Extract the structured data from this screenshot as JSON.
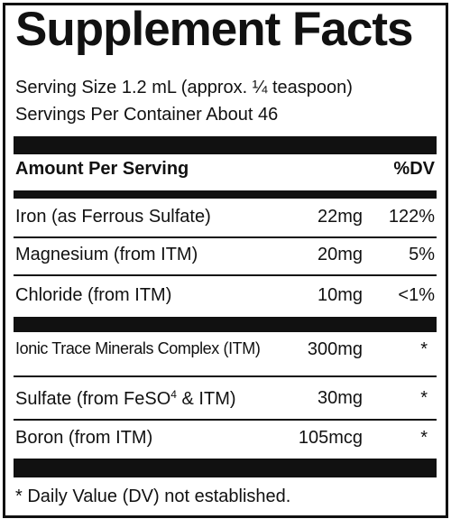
{
  "title": "Supplement Facts",
  "serving_size": "Serving Size 1.2 mL (approx. ¼ teaspoon)",
  "servings_per_container": "Servings Per Container About 46",
  "header": {
    "amount_label": "Amount Per Serving",
    "dv_label": "%DV"
  },
  "group1": [
    {
      "name": "Iron (as Ferrous Sulfate)",
      "amount": "22mg",
      "dv": "122%"
    },
    {
      "name": "Magnesium (from ITM)",
      "amount": "20mg",
      "dv": "5%"
    },
    {
      "name": "Chloride (from ITM)",
      "amount": "10mg",
      "dv": "<1%"
    }
  ],
  "group2": [
    {
      "name": "Ionic Trace Minerals Complex (ITM)",
      "amount": "300mg",
      "dv": "*"
    },
    {
      "name_prefix": "Sulfate (from FeSO",
      "name_sup": "4",
      "name_suffix": " & ITM)",
      "amount": "30mg",
      "dv": "*"
    },
    {
      "name": "Boron (from ITM)",
      "amount": "105mcg",
      "dv": "*"
    }
  ],
  "footnote": "* Daily Value (DV) not established."
}
